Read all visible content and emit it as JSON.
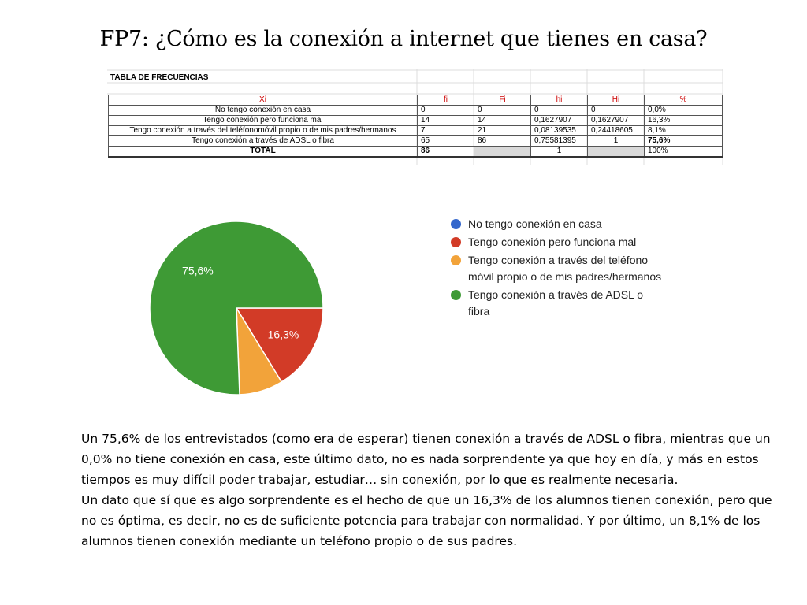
{
  "slide": {
    "title": "FP7: ¿Cómo es la conexión a internet que tienes en casa?"
  },
  "table": {
    "heading": "TABLA DE FRECUENCIAS",
    "headers": [
      "Xi",
      "fi",
      "Fi",
      "hi",
      "Hi",
      "%"
    ],
    "rows": [
      [
        "No tengo conexión en casa",
        "0",
        "0",
        "0",
        "0",
        "0,0%"
      ],
      [
        "Tengo conexión pero funciona mal",
        "14",
        "14",
        "0,1627907",
        "0,1627907",
        "16,3%"
      ],
      [
        "Tengo conexión a través del teléfonomóvil propio o de mis padres/hermanos",
        "7",
        "21",
        "0,08139535",
        "0,24418605",
        "8,1%"
      ],
      [
        "Tengo conexión a través de ADSL o fibra",
        "65",
        "86",
        "0,75581395",
        "1",
        "75,6%"
      ]
    ],
    "total": [
      "TOTAL",
      "86",
      "",
      "1",
      "",
      "100%"
    ]
  },
  "colors": {
    "blue": "#3366cc",
    "red": "#d23b27",
    "orange": "#f2a33a",
    "green": "#3e9a35"
  },
  "chart_data": {
    "type": "pie",
    "title": "",
    "labels": [
      "No tengo conexión en casa",
      "Tengo conexión pero funciona mal",
      "Tengo conexión a través del teléfono móvil propio o de mis padres/hermanos",
      "Tengo conexión a través de ADSL o fibra"
    ],
    "values": [
      0,
      14,
      7,
      65
    ],
    "percent_labels": [
      "0,0%",
      "16,3%",
      "8,1%",
      "75,6%"
    ],
    "colors": [
      "#3366cc",
      "#d23b27",
      "#f2a33a",
      "#3e9a35"
    ],
    "legend_position": "right"
  },
  "legend": {
    "items": [
      {
        "line1": "No tengo conexión en casa",
        "line2": ""
      },
      {
        "line1": "Tengo conexión pero funciona mal",
        "line2": ""
      },
      {
        "line1": "Tengo conexión a través del teléfono",
        "line2": "móvil propio o de mis padres/hermanos"
      },
      {
        "line1": "Tengo conexión a través de ADSL o",
        "line2": "fibra"
      }
    ]
  },
  "body": {
    "paragraph1": "Un 75,6% de los entrevistados (como era de esperar) tienen conexión a través de ADSL o fibra, mientras que un 0,0% no tiene conexión en casa, este último dato, no es nada sorprendente ya que hoy en día, y más en estos tiempos es muy difícil poder trabajar, estudiar… sin conexión, por lo que es realmente necesaria.",
    "paragraph2": "Un dato que sí que es algo sorprendente es el hecho de que un 16,3% de los alumnos tienen conexión, pero que no es óptima, es decir, no es de suficiente potencia para trabajar con normalidad. Y por último, un 8,1% de los alumnos tienen conexión mediante un teléfono propio o de sus padres."
  }
}
